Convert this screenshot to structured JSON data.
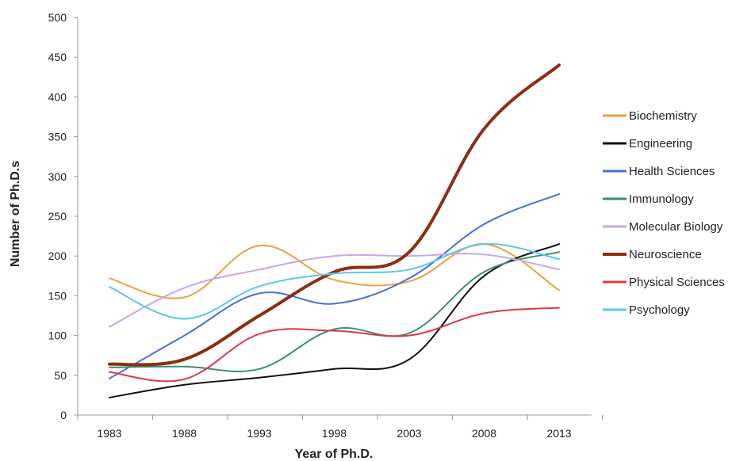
{
  "chart_data": {
    "type": "line",
    "xlabel": "Year of Ph.D.",
    "ylabel": "Number of Ph.D.s",
    "x": [
      "1983",
      "1988",
      "1993",
      "1998",
      "2003",
      "2008",
      "2013"
    ],
    "ylim": [
      0,
      500
    ],
    "yticks": [
      0,
      50,
      100,
      150,
      200,
      250,
      300,
      350,
      400,
      450,
      500
    ],
    "grid": false,
    "legend_position": "right",
    "series": [
      {
        "name": "Biochemistry",
        "color": "#E8A33D",
        "values": [
          172,
          148,
          213,
          170,
          168,
          215,
          157
        ]
      },
      {
        "name": "Engineering",
        "color": "#111111",
        "values": [
          22,
          38,
          47,
          58,
          70,
          175,
          215
        ]
      },
      {
        "name": "Health Sciences",
        "color": "#4A6FD8",
        "values": [
          46,
          100,
          153,
          140,
          172,
          240,
          278
        ]
      },
      {
        "name": "Immunology",
        "color": "#3E8E6E",
        "values": [
          60,
          61,
          58,
          108,
          103,
          180,
          205
        ]
      },
      {
        "name": "Molecular Biology",
        "color": "#C9A6E8",
        "values": [
          111,
          160,
          183,
          200,
          200,
          202,
          183
        ]
      },
      {
        "name": "Neuroscience",
        "color": "#8B2E12",
        "values": [
          64,
          70,
          125,
          180,
          205,
          360,
          440
        ]
      },
      {
        "name": "Physical Sciences",
        "color": "#D93A45",
        "values": [
          54,
          45,
          102,
          106,
          100,
          128,
          135
        ]
      },
      {
        "name": "Psychology",
        "color": "#5BC8E8",
        "values": [
          161,
          121,
          162,
          178,
          183,
          215,
          196
        ]
      }
    ]
  }
}
